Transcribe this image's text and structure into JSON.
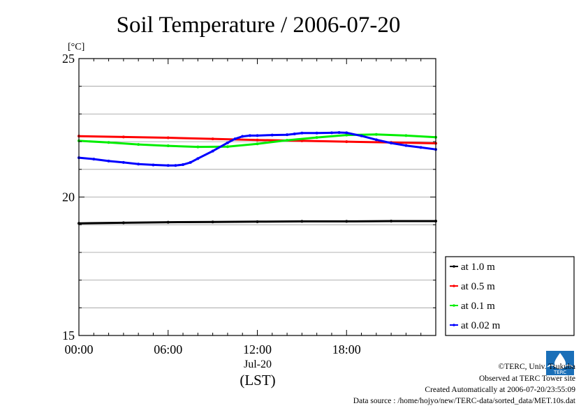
{
  "chart_data": {
    "type": "line",
    "title": "Soil Temperature / 2006-07-20",
    "ylabel": "[°C]",
    "xlabel": "(LST)",
    "date_label": "Jul-20",
    "ylim": [
      15,
      25
    ],
    "xlim": [
      0,
      24
    ],
    "y_ticks": [
      {
        "value": 15,
        "label": "15"
      },
      {
        "value": 20,
        "label": "20"
      },
      {
        "value": 25,
        "label": "25"
      }
    ],
    "y_minor_ticks": [
      16,
      17,
      18,
      19,
      21,
      22,
      23,
      24
    ],
    "x_ticks": [
      {
        "value": 0,
        "label": "00:00"
      },
      {
        "value": 6,
        "label": "06:00"
      },
      {
        "value": 12,
        "label": "12:00"
      },
      {
        "value": 18,
        "label": "18:00"
      }
    ],
    "grid": true,
    "legend_position": "right",
    "series": [
      {
        "name": "at 1.0 m",
        "color": "#000000",
        "x": [
          0,
          3,
          6,
          9,
          12,
          15,
          18,
          21,
          24
        ],
        "y": [
          19.05,
          19.07,
          19.09,
          19.1,
          19.11,
          19.12,
          19.12,
          19.13,
          19.13
        ]
      },
      {
        "name": "at 0.5 m",
        "color": "#ff0000",
        "x": [
          0,
          3,
          6,
          9,
          12,
          15,
          18,
          21,
          24
        ],
        "y": [
          22.2,
          22.17,
          22.14,
          22.1,
          22.06,
          22.03,
          22.0,
          21.97,
          21.94
        ]
      },
      {
        "name": "at 0.1 m",
        "color": "#00ee00",
        "x": [
          0,
          2,
          4,
          6,
          8,
          10,
          12,
          14,
          16,
          18,
          20,
          22,
          24
        ],
        "y": [
          22.03,
          21.97,
          21.9,
          21.85,
          21.81,
          21.82,
          21.92,
          22.05,
          22.15,
          22.24,
          22.26,
          22.22,
          22.16
        ]
      },
      {
        "name": "at 0.02 m",
        "color": "#0000ff",
        "x": [
          0,
          1,
          2,
          3,
          4,
          5,
          6,
          6.5,
          7,
          7.5,
          8,
          9,
          10,
          10.5,
          11,
          11.5,
          12,
          13,
          14,
          14.5,
          15,
          16,
          17,
          17.5,
          18,
          19,
          20,
          21,
          22,
          23,
          24
        ],
        "y": [
          21.42,
          21.37,
          21.3,
          21.25,
          21.19,
          21.16,
          21.14,
          21.14,
          21.17,
          21.25,
          21.39,
          21.66,
          21.96,
          22.1,
          22.19,
          22.22,
          22.22,
          22.24,
          22.25,
          22.28,
          22.31,
          22.31,
          22.32,
          22.33,
          22.32,
          22.21,
          22.07,
          21.95,
          21.86,
          21.79,
          21.72
        ]
      }
    ]
  },
  "credits": {
    "copyright": "©TERC, Univ. Tsukuba",
    "observed": "Observed at TERC Tower site",
    "created": "Created Automatically at 2006-07-20/23:55:09",
    "source": "Data source : /home/hojyo/new/TERC-data/sorted_data/MET.10s.dat"
  },
  "logo": {
    "text": "TERC",
    "color": "#1a6fb8"
  }
}
